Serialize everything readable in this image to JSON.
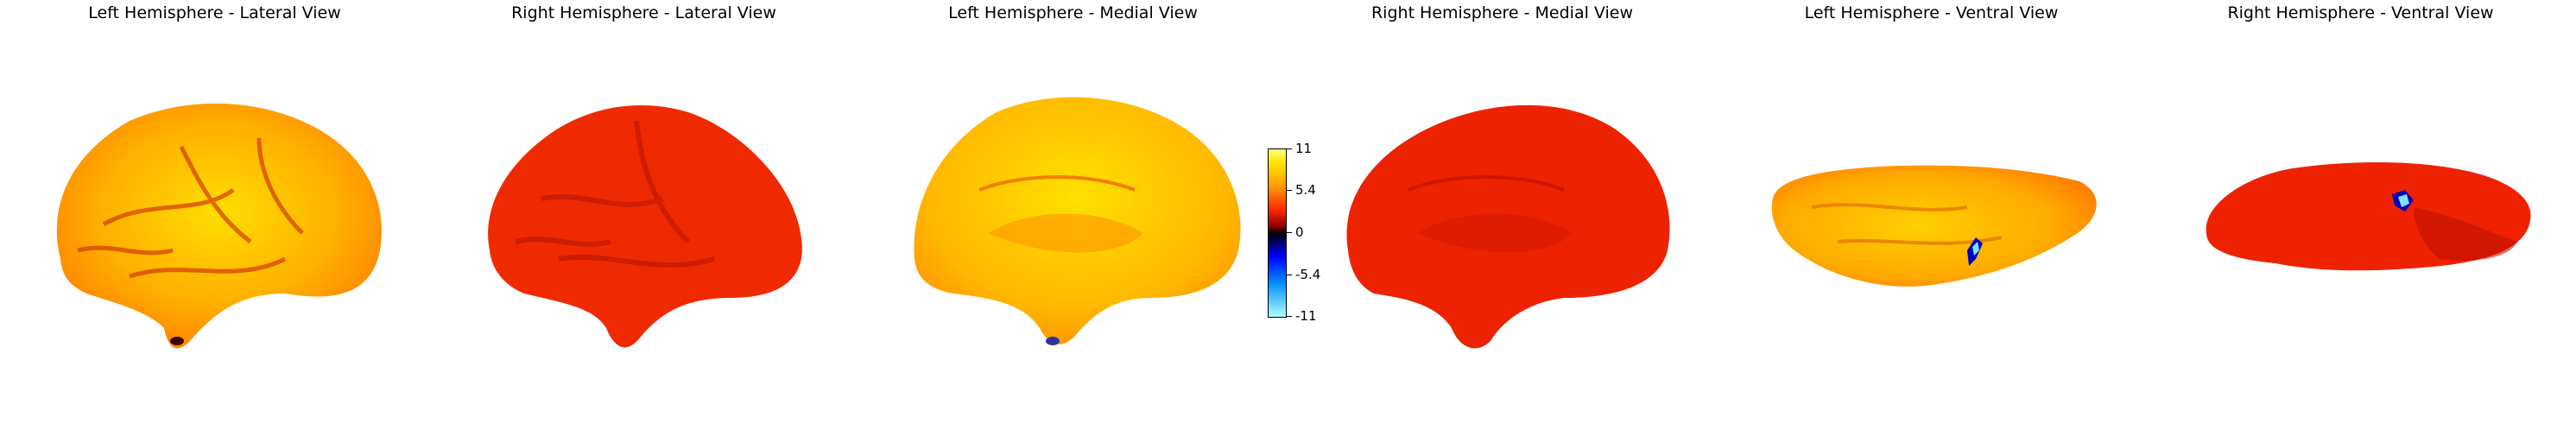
{
  "panels": [
    {
      "title": "Left Hemisphere - Lateral View"
    },
    {
      "title": "Right Hemisphere - Lateral View"
    },
    {
      "title": "Left Hemisphere - Medial View"
    },
    {
      "title": "Right Hemisphere - Medial View"
    },
    {
      "title": "Left Hemisphere - Ventral View"
    },
    {
      "title": "Right Hemisphere - Ventral View"
    }
  ],
  "colorbar": {
    "ticks": [
      "11",
      "5.4",
      "0",
      "-5.4",
      "-11"
    ],
    "colors": {
      "max": "#ffff80",
      "mid_pos": "#ff2a00",
      "zero": "#000000",
      "mid_neg": "#0000ff",
      "min": "#aeffff"
    }
  },
  "brain_colors": {
    "yellow": "#ffd400",
    "orange": "#ff8c00",
    "red": "#ee2200",
    "dark_red": "#c41000"
  }
}
